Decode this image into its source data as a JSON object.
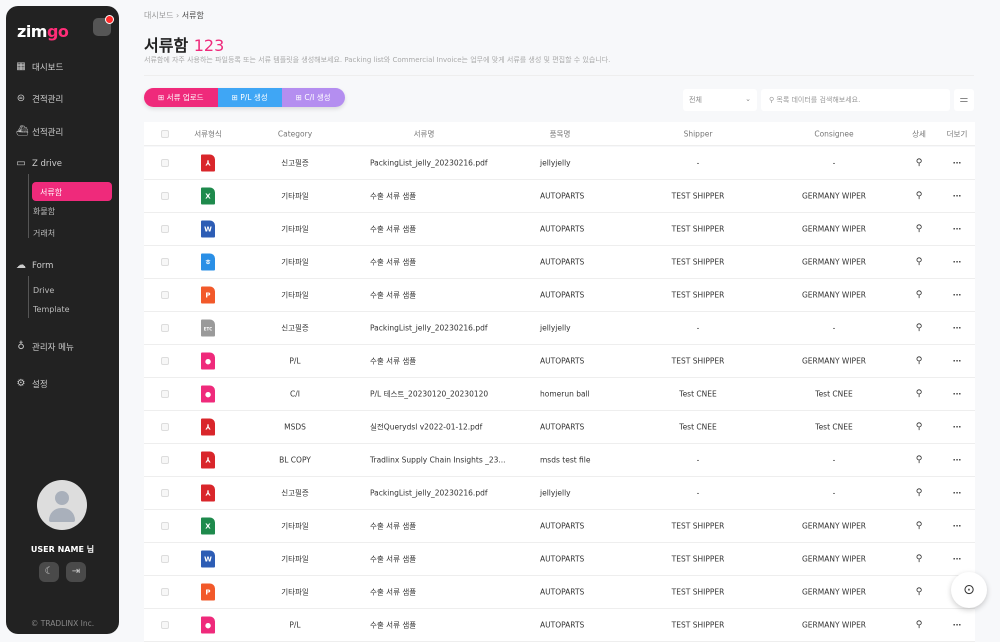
{
  "sidebar": {
    "logo_main": "zim",
    "logo_accent": "go",
    "items": [
      {
        "label": "대시보드",
        "icon": "dashboard-icon"
      },
      {
        "label": "견적관리",
        "icon": "dollar-icon"
      },
      {
        "label": "선적관리",
        "icon": "ship-icon"
      },
      {
        "label": "Z drive",
        "icon": "drive-icon"
      },
      {
        "label": "Form",
        "icon": "cloud-icon"
      },
      {
        "label": "관리자 메뉴",
        "icon": "admin-icon"
      },
      {
        "label": "설정",
        "icon": "gear-icon"
      }
    ],
    "zdrive_sub": [
      "서류함",
      "화물함",
      "거래처"
    ],
    "form_sub": [
      "Drive",
      "Template"
    ],
    "user_name": "USER NAME 님",
    "copyright": "© TRADLINX Inc."
  },
  "breadcrumb": {
    "parent": "대시보드",
    "current": "서류함"
  },
  "page": {
    "title": "서류함",
    "count": "123",
    "description": "서류함에 자주 사용하는 파일등록 또는 서류 템플릿을 생성해보세요. Packing list와 Commercial Invoice는 업무에 맞게 서류를 생성 및 편집할 수 있습니다."
  },
  "actions": [
    {
      "label": "서류 업로드",
      "color": "#ef2a7b"
    },
    {
      "label": "P/L 생성",
      "color": "#3fa6f5"
    },
    {
      "label": "C/I 생성",
      "color": "#b48ef0"
    }
  ],
  "filter": {
    "selected": "전체",
    "search_placeholder": "목록 데이터를 검색해보세요."
  },
  "table": {
    "columns": [
      "서류형식",
      "Category",
      "서류명",
      "품목명",
      "Shipper",
      "Consignee",
      "상세",
      "더보기"
    ],
    "rows": [
      {
        "type": "pdf",
        "category": "신고필증",
        "name": "PackingList_jelly_20230216.pdf",
        "item": "jellyjelly",
        "shipper": "-",
        "consignee": "-"
      },
      {
        "type": "xls",
        "category": "기타파일",
        "name": "수출 서류 샘플",
        "item": "AUTOPARTS",
        "shipper": "TEST SHIPPER",
        "consignee": "GERMANY WIPER"
      },
      {
        "type": "doc",
        "category": "기타파일",
        "name": "수출 서류 샘플",
        "item": "AUTOPARTS",
        "shipper": "TEST SHIPPER",
        "consignee": "GERMANY WIPER"
      },
      {
        "type": "hwp",
        "category": "기타파일",
        "name": "수출 서류 샘플",
        "item": "AUTOPARTS",
        "shipper": "TEST SHIPPER",
        "consignee": "GERMANY WIPER"
      },
      {
        "type": "ppt",
        "category": "기타파일",
        "name": "수출 서류 샘플",
        "item": "AUTOPARTS",
        "shipper": "TEST SHIPPER",
        "consignee": "GERMANY WIPER"
      },
      {
        "type": "etc",
        "category": "신고필증",
        "name": "PackingList_jelly_20230216.pdf",
        "item": "jellyjelly",
        "shipper": "-",
        "consignee": "-"
      },
      {
        "type": "zimgo",
        "category": "P/L",
        "name": "수출 서류 샘플",
        "item": "AUTOPARTS",
        "shipper": "TEST SHIPPER",
        "consignee": "GERMANY WIPER"
      },
      {
        "type": "zimgo",
        "category": "C/I",
        "name": "P/L 테스트_20230120_20230120",
        "item": "homerun ball",
        "shipper": "Test CNEE",
        "consignee": "Test CNEE"
      },
      {
        "type": "pdf",
        "category": "MSDS",
        "name": "실전Querydsl v2022-01-12.pdf",
        "item": "AUTOPARTS",
        "shipper": "Test CNEE",
        "consignee": "Test CNEE"
      },
      {
        "type": "pdf",
        "category": "BL COPY",
        "name": "Tradlinx Supply Chain Insights _23...",
        "item": "msds test file",
        "shipper": "-",
        "consignee": "-"
      },
      {
        "type": "pdf",
        "category": "신고필증",
        "name": "PackingList_jelly_20230216.pdf",
        "item": "jellyjelly",
        "shipper": "-",
        "consignee": "-"
      },
      {
        "type": "xls",
        "category": "기타파일",
        "name": "수출 서류 샘플",
        "item": "AUTOPARTS",
        "shipper": "TEST SHIPPER",
        "consignee": "GERMANY WIPER"
      },
      {
        "type": "doc",
        "category": "기타파일",
        "name": "수출 서류 샘플",
        "item": "AUTOPARTS",
        "shipper": "TEST SHIPPER",
        "consignee": "GERMANY WIPER"
      },
      {
        "type": "ppt",
        "category": "기타파일",
        "name": "수출 서류 샘플",
        "item": "AUTOPARTS",
        "shipper": "TEST SHIPPER",
        "consignee": "GERMANY WIPER"
      },
      {
        "type": "zimgo",
        "category": "P/L",
        "name": "수출 서류 샘플",
        "item": "AUTOPARTS",
        "shipper": "TEST SHIPPER",
        "consignee": "GERMANY WIPER"
      }
    ]
  },
  "file_types": {
    "pdf": {
      "color": "#d9262b",
      "glyph": "⅄"
    },
    "xls": {
      "color": "#1e8a4c",
      "glyph": "X"
    },
    "doc": {
      "color": "#2d5db5",
      "glyph": "W"
    },
    "hwp": {
      "color": "#2a8fe6",
      "glyph": "ㅎ"
    },
    "ppt": {
      "color": "#f2592a",
      "glyph": "P"
    },
    "etc": {
      "color": "#9a9a9a",
      "glyph": "ETC"
    },
    "zimgo": {
      "color": "#ef2a7b",
      "glyph": "●"
    }
  }
}
